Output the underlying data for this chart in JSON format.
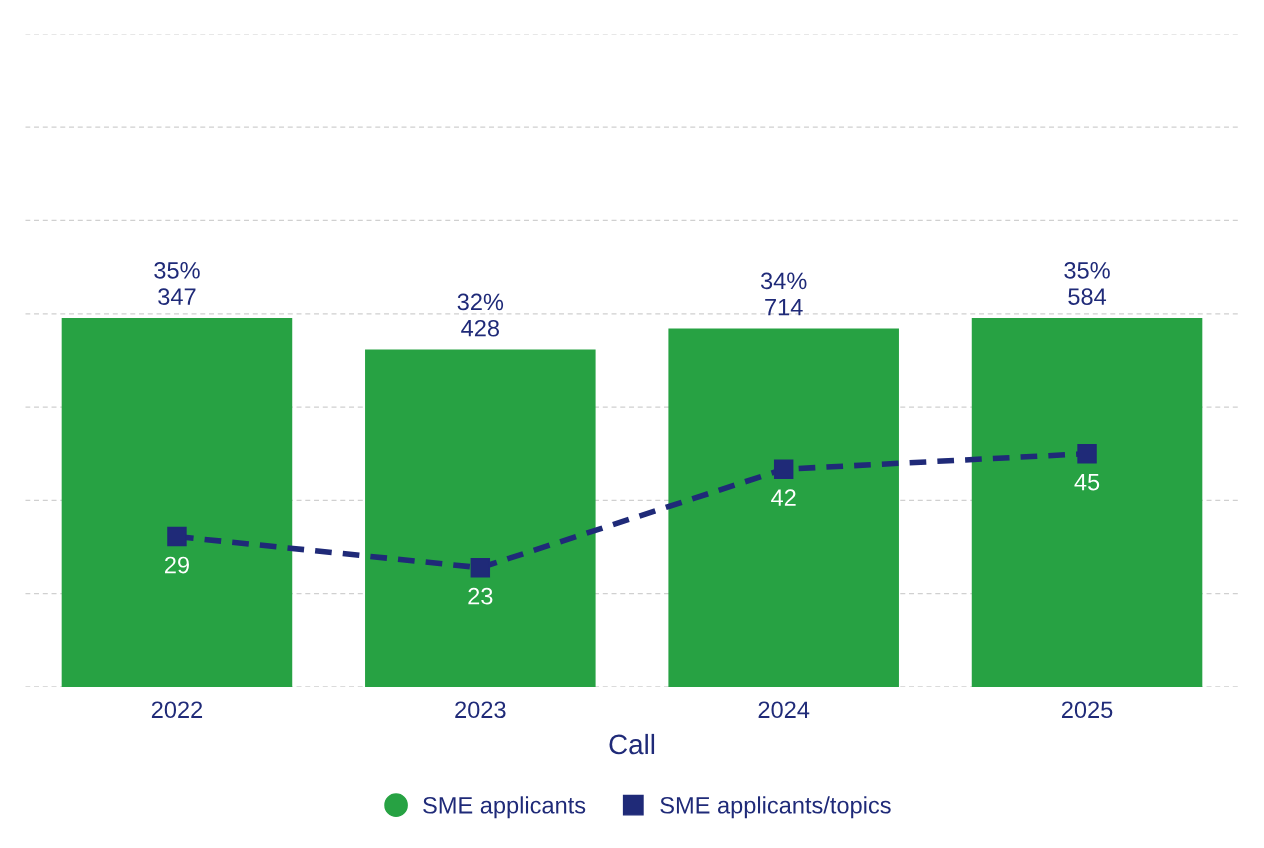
{
  "chart_data": {
    "type": "bar",
    "xlabel": "Call",
    "categories": [
      "2022",
      "2023",
      "2024",
      "2025"
    ],
    "grid": "y",
    "legend": "bottom",
    "series": [
      {
        "name": "SME applicants",
        "color": "#27a243",
        "values": [
          35,
          32,
          34,
          35
        ],
        "value_labels": [
          "35%\n347",
          "32%\n428",
          "34%\n714",
          "35%\n584"
        ]
      },
      {
        "name": "SME applicants/topics",
        "type": "line",
        "axis": "y2",
        "color": "#1f2a78",
        "values": [
          29,
          23,
          42,
          45
        ],
        "marker": "square",
        "line_style": "dashed",
        "data_labels": true
      }
    ]
  }
}
